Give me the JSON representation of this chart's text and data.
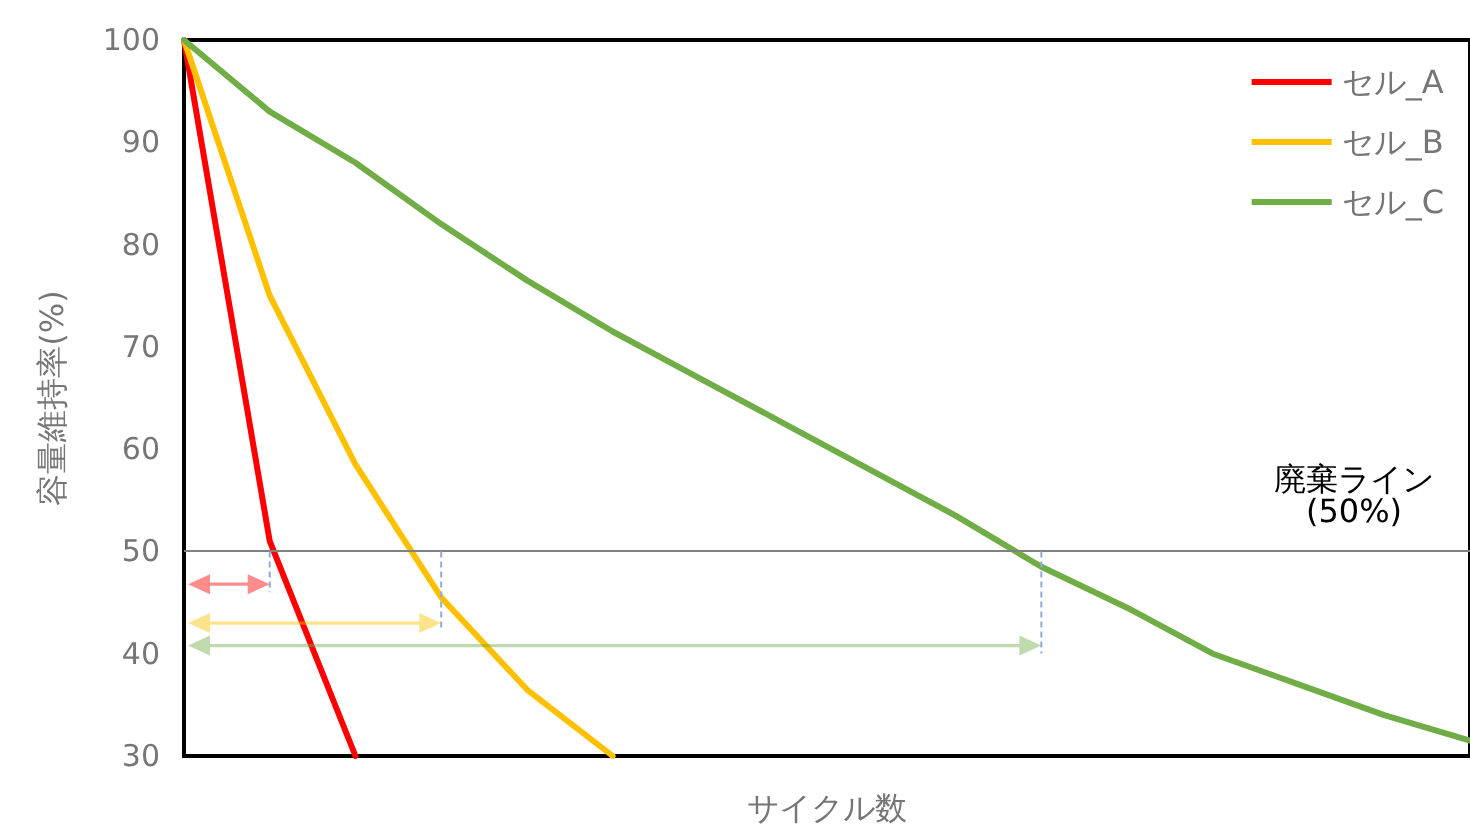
{
  "chart_data": {
    "type": "line",
    "xlabel": "サイクル数",
    "ylabel": "容量維持率(%)",
    "categories": [
      null,
      null,
      null,
      null,
      null,
      null,
      null,
      null,
      null,
      null,
      null,
      null,
      null,
      null,
      null,
      null
    ],
    "series": [
      {
        "name": "セル_A",
        "color": "#ff0000",
        "values": [
          100,
          51,
          30,
          null,
          null,
          null,
          null,
          null,
          null,
          null,
          null,
          null,
          null,
          null,
          null,
          null
        ]
      },
      {
        "name": "セル_B",
        "color": "#ffc000",
        "values": [
          100,
          75,
          58.5,
          45.5,
          36.5,
          30,
          null,
          null,
          null,
          null,
          null,
          null,
          null,
          null,
          null,
          null
        ]
      },
      {
        "name": "セル_C",
        "color": "#70ad47",
        "values": [
          100,
          93,
          88,
          82,
          76.5,
          71.5,
          67,
          62.5,
          58,
          53.5,
          48.5,
          44.5,
          40,
          37,
          34,
          31.5
        ]
      }
    ],
    "ylim": [
      30,
      100
    ],
    "yticks": [
      30,
      40,
      50,
      60,
      70,
      80,
      90,
      100
    ],
    "ref_lines": [
      {
        "axis": "y",
        "value": 50,
        "label": "廃棄ライン\n(50%)",
        "color": "#808080"
      }
    ],
    "grid": false,
    "legend": "top right",
    "marker": "none",
    "line_style": "solid",
    "tick_labels": "y"
  }
}
